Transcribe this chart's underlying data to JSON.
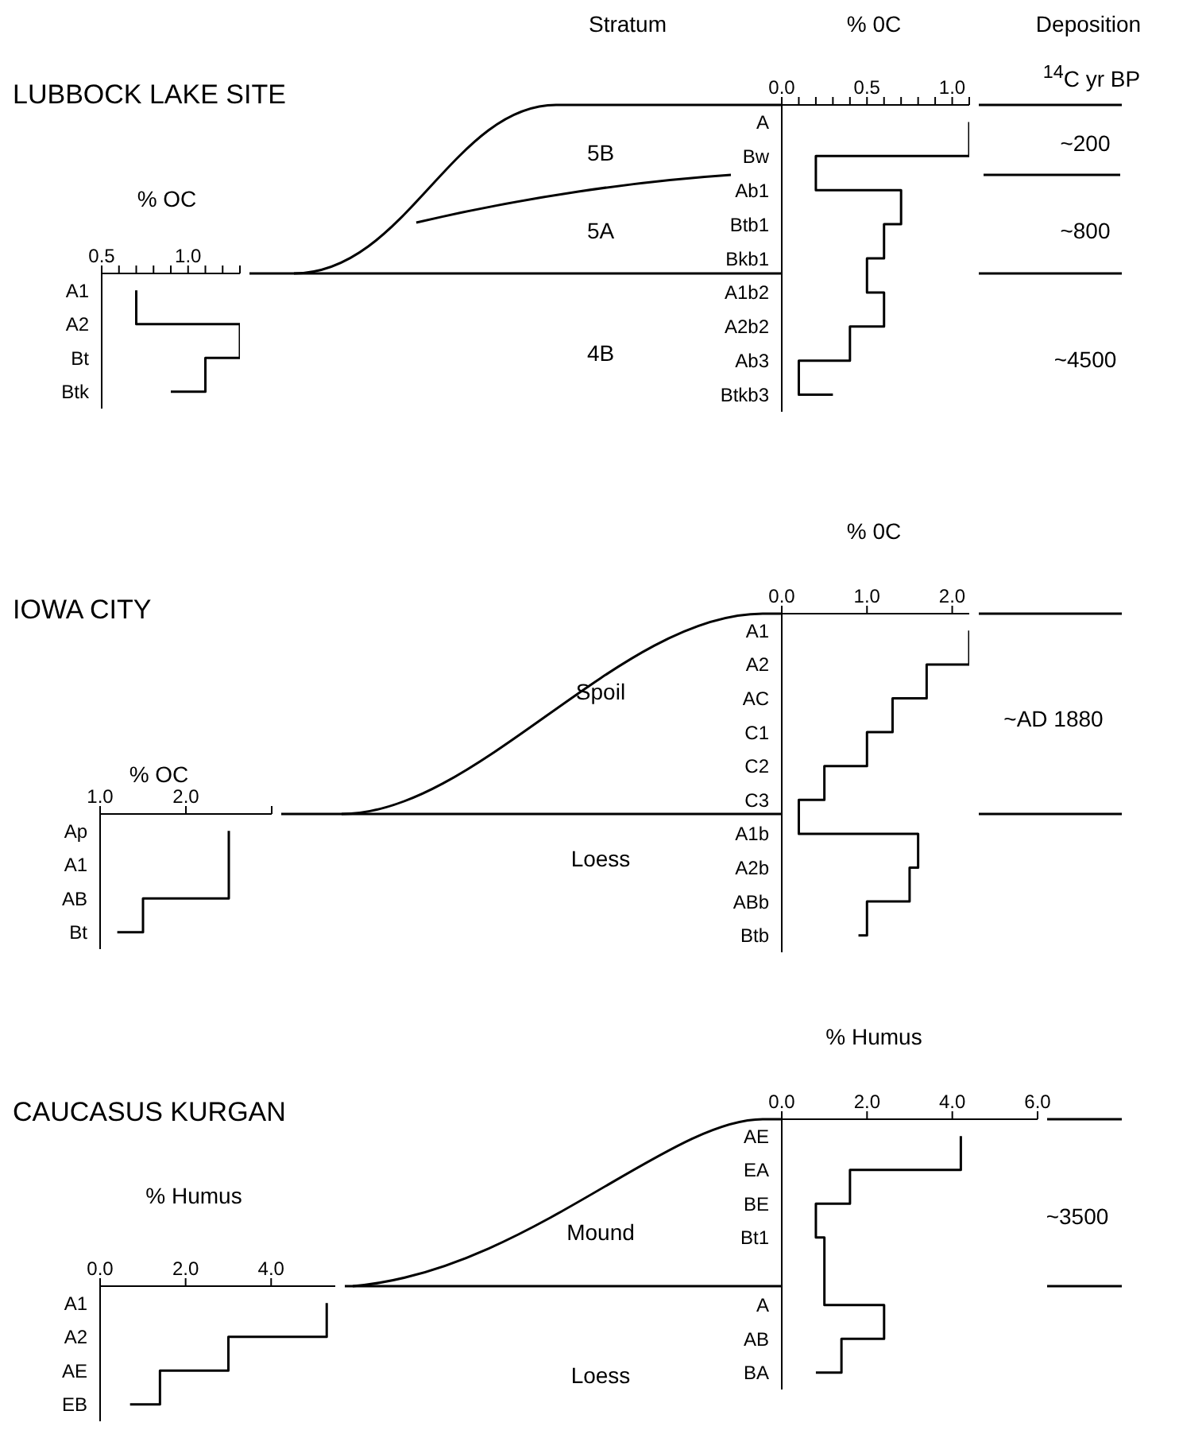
{
  "chart_data": [
    {
      "type": "step",
      "title": "LUBBOCK LAKE SITE",
      "xlabel": "% OC",
      "orientation": "horizontal",
      "categories": [
        "A1",
        "A2",
        "Bt",
        "Btk"
      ],
      "values": [
        0.7,
        1.3,
        1.1,
        0.9
      ],
      "color": "#000000",
      "xlim": [
        0.5,
        1.3
      ],
      "xticks": [
        {
          "value": 0.5,
          "label": "0.5"
        },
        {
          "value": 0.6,
          "label": null
        },
        {
          "value": 0.7,
          "label": null
        },
        {
          "value": 0.8,
          "label": null
        },
        {
          "value": 0.9,
          "label": null
        },
        {
          "value": 1.0,
          "label": "1.0"
        },
        {
          "value": 1.1,
          "label": null
        },
        {
          "value": 1.2,
          "label": null
        },
        {
          "value": 1.3,
          "label": null
        }
      ]
    },
    {
      "type": "step",
      "xlabel": "% 0C",
      "orientation": "horizontal",
      "categories": [
        "A",
        "Bw",
        "Ab1",
        "Btb1",
        "Bkb1",
        "A1b2",
        "A2b2",
        "Ab3",
        "Btkb3"
      ],
      "values": [
        1.1,
        0.2,
        0.7,
        0.6,
        0.5,
        0.6,
        0.4,
        0.1,
        0.3
      ],
      "color": "#000000",
      "xlim": [
        0,
        1.1
      ],
      "xticks": [
        {
          "value": 0,
          "label": "0.0"
        },
        {
          "value": 0.1,
          "label": null
        },
        {
          "value": 0.2,
          "label": null
        },
        {
          "value": 0.3,
          "label": null
        },
        {
          "value": 0.4,
          "label": null
        },
        {
          "value": 0.5,
          "label": "0.5"
        },
        {
          "value": 0.6,
          "label": null
        },
        {
          "value": 0.7,
          "label": null
        },
        {
          "value": 0.8,
          "label": null
        },
        {
          "value": 0.9,
          "label": null
        },
        {
          "value": 1.0,
          "label": "1.0"
        },
        {
          "value": 1.1,
          "label": null
        }
      ],
      "annotations": [
        "Stratum",
        "Deposition",
        "$^{14}$C yr BP",
        "5B",
        "5A",
        "4B",
        "~200",
        "~800",
        "~4500"
      ]
    },
    {
      "type": "step",
      "title": "IOWA CITY",
      "xlabel": "% OC",
      "orientation": "horizontal",
      "categories": [
        "Ap",
        "A1",
        "AB",
        "Bt"
      ],
      "values": [
        2.5,
        2.5,
        1.5,
        1.2
      ],
      "color": "#000000",
      "xlim": [
        1,
        3
      ],
      "xticks": [
        {
          "value": 1,
          "label": "1.0"
        },
        {
          "value": 2,
          "label": "2.0"
        },
        {
          "value": 3,
          "label": null
        }
      ]
    },
    {
      "type": "step",
      "xlabel": "% 0C",
      "orientation": "horizontal",
      "categories": [
        "A1",
        "A2",
        "AC",
        "C1",
        "C2",
        "C3",
        "A1b",
        "A2b",
        "ABb",
        "Btb"
      ],
      "values": [
        2.2,
        1.7,
        1.3,
        1.0,
        0.5,
        0.2,
        1.6,
        1.5,
        1.0,
        0.9
      ],
      "color": "#000000",
      "xlim": [
        0,
        2.2
      ],
      "xticks": [
        {
          "value": 0,
          "label": "0.0"
        },
        {
          "value": 1,
          "label": "1.0"
        },
        {
          "value": 2,
          "label": "2.0"
        }
      ],
      "annotations": [
        "Spoil",
        "Loess",
        "~AD 1880"
      ]
    },
    {
      "type": "step",
      "title": "CAUCASUS KURGAN",
      "xlabel": "% Humus",
      "orientation": "horizontal",
      "categories": [
        "A1",
        "A2",
        "AE",
        "EB"
      ],
      "values": [
        5.3,
        3.0,
        1.4,
        0.7
      ],
      "color": "#000000",
      "xlim": [
        0,
        5.5
      ],
      "xticks": [
        {
          "value": 0,
          "label": "0.0"
        },
        {
          "value": 2,
          "label": "2.0"
        },
        {
          "value": 4,
          "label": "4.0"
        }
      ]
    },
    {
      "type": "step",
      "xlabel": "% Humus",
      "orientation": "horizontal",
      "categories": [
        "AE",
        "EA",
        "BE",
        "Bt1",
        null,
        "A",
        "AB",
        "BA"
      ],
      "values": [
        4.2,
        1.6,
        0.8,
        1.0,
        null,
        2.4,
        1.4,
        0.8
      ],
      "color": "#000000",
      "xlim": [
        0,
        6
      ],
      "xticks": [
        {
          "value": 0,
          "label": "0.0"
        },
        {
          "value": 2,
          "label": "2.0"
        },
        {
          "value": 4,
          "label": "4.0"
        },
        {
          "value": 6,
          "label": "6.0"
        }
      ],
      "annotations": [
        "Mound",
        "Loess",
        "~3500"
      ]
    }
  ]
}
